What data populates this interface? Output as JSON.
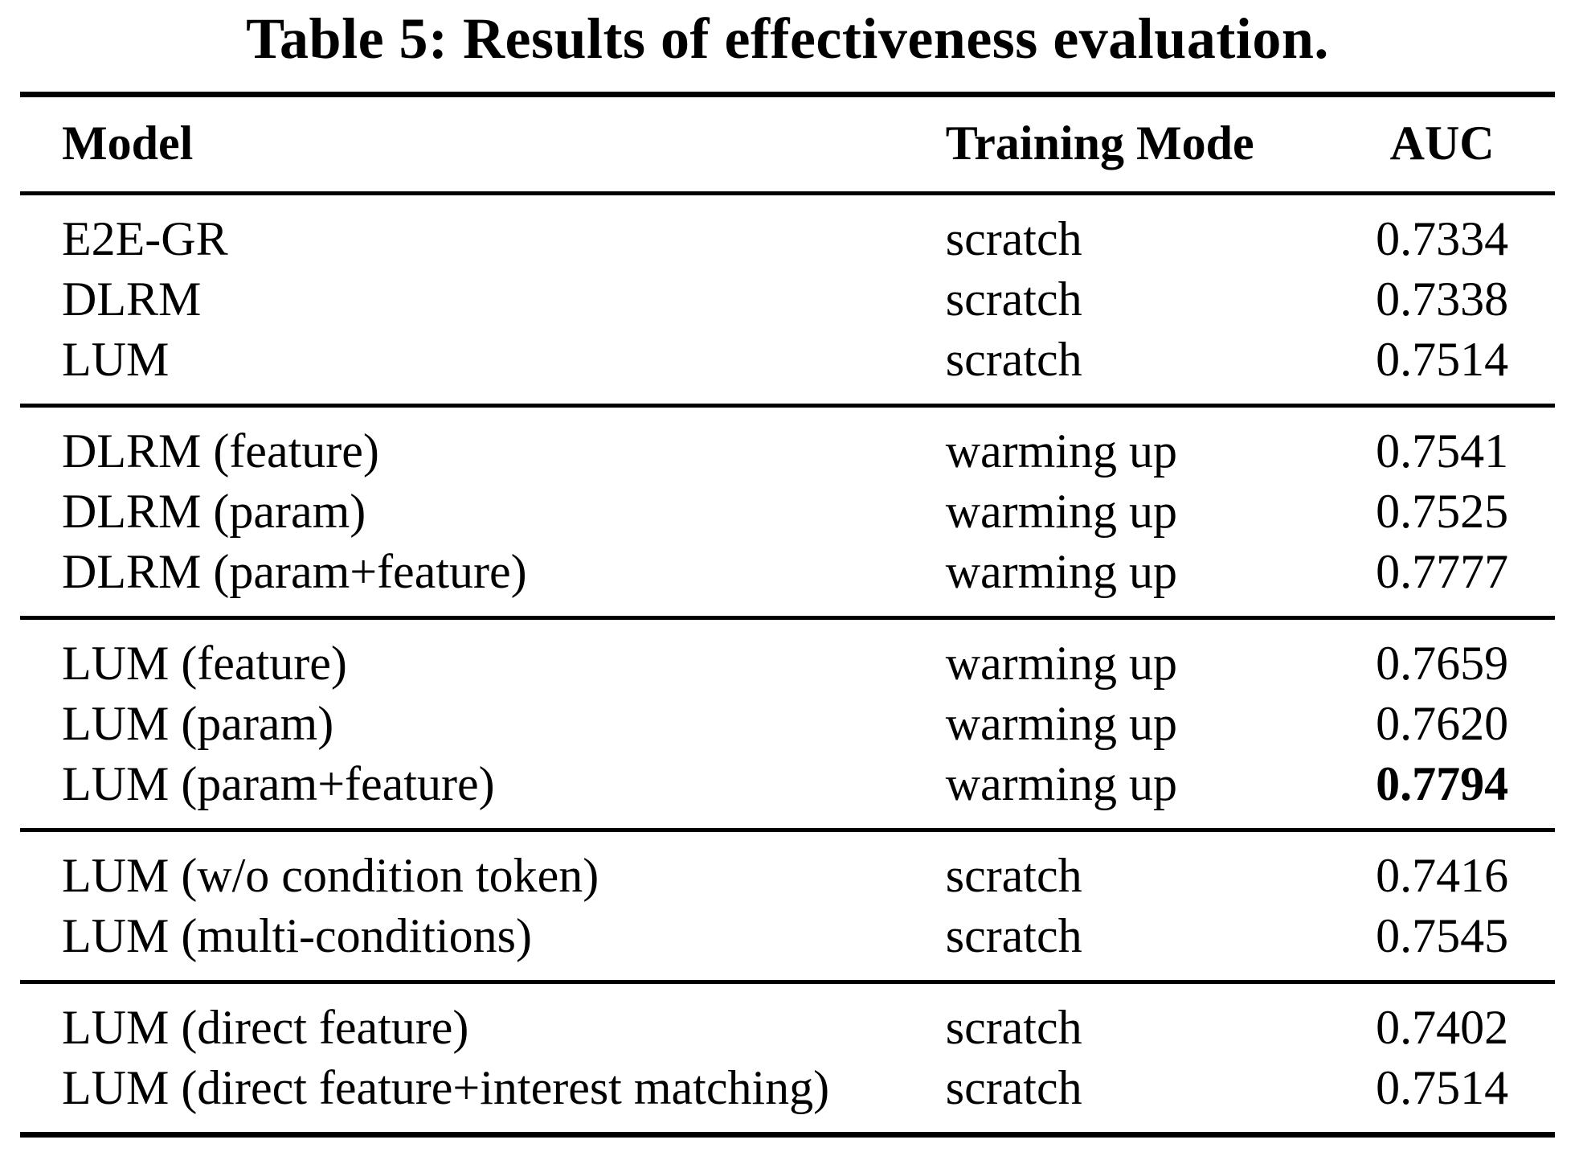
{
  "title": "Table 5: Results of effectiveness evaluation.",
  "colors": {
    "text": "#000000",
    "background": "#ffffff"
  },
  "table": {
    "columns": [
      "Model",
      "Training Mode",
      "AUC"
    ],
    "groups": [
      {
        "rows": [
          {
            "model": "E2E-GR",
            "training_mode": "scratch",
            "auc": "0.7334",
            "auc_bold": false
          },
          {
            "model": "DLRM",
            "training_mode": "scratch",
            "auc": "0.7338",
            "auc_bold": false
          },
          {
            "model": "LUM",
            "training_mode": "scratch",
            "auc": "0.7514",
            "auc_bold": false
          }
        ]
      },
      {
        "rows": [
          {
            "model": "DLRM (feature)",
            "training_mode": "warming up",
            "auc": "0.7541",
            "auc_bold": false
          },
          {
            "model": "DLRM (param)",
            "training_mode": "warming up",
            "auc": "0.7525",
            "auc_bold": false
          },
          {
            "model": "DLRM (param+feature)",
            "training_mode": "warming up",
            "auc": "0.7777",
            "auc_bold": false
          }
        ]
      },
      {
        "rows": [
          {
            "model": "LUM (feature)",
            "training_mode": "warming up",
            "auc": "0.7659",
            "auc_bold": false
          },
          {
            "model": "LUM (param)",
            "training_mode": "warming up",
            "auc": "0.7620",
            "auc_bold": false
          },
          {
            "model": "LUM (param+feature)",
            "training_mode": "warming up",
            "auc": "0.7794",
            "auc_bold": true
          }
        ]
      },
      {
        "rows": [
          {
            "model": "LUM (w/o condition token)",
            "training_mode": "scratch",
            "auc": "0.7416",
            "auc_bold": false
          },
          {
            "model": "LUM (multi-conditions)",
            "training_mode": "scratch",
            "auc": "0.7545",
            "auc_bold": false
          }
        ]
      },
      {
        "rows": [
          {
            "model": "LUM (direct feature)",
            "training_mode": "scratch",
            "auc": "0.7402",
            "auc_bold": false
          },
          {
            "model": "LUM (direct feature+interest matching)",
            "training_mode": "scratch",
            "auc": "0.7514",
            "auc_bold": false
          }
        ]
      }
    ]
  }
}
